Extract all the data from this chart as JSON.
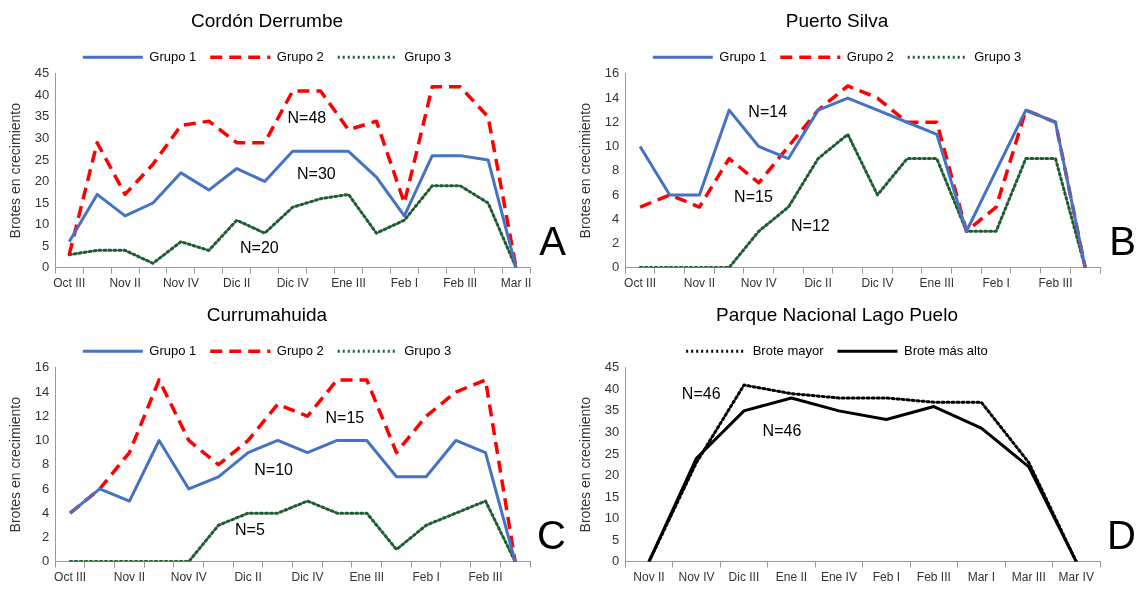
{
  "chart_data": [
    {
      "type": "line",
      "title": "Cordón Derrumbe",
      "ylabel": "Brotes en crecimiento",
      "legend": "top",
      "grid": false,
      "marker": "none",
      "categories": [
        "Oct III",
        null,
        "Nov II",
        null,
        "Nov IV",
        null,
        "Dic II",
        null,
        "Dic IV",
        null,
        "Ene III",
        null,
        "Feb I",
        null,
        "Feb III",
        null,
        "Mar II"
      ],
      "ylim": [
        0,
        45
      ],
      "yticks": [
        0,
        5,
        10,
        15,
        20,
        25,
        30,
        35,
        40,
        45
      ],
      "series": [
        {
          "name": "Grupo 1",
          "color": "#4472c4",
          "line_style": "solid",
          "values": [
            6,
            17,
            12,
            15,
            22,
            18,
            23,
            20,
            27,
            27,
            27,
            21,
            12,
            26,
            26,
            25,
            0
          ]
        },
        {
          "name": "Grupo 2",
          "color": "#ff0000",
          "line_style": "dashed",
          "values": [
            3,
            29,
            17,
            24,
            33,
            34,
            29,
            29,
            41,
            41,
            32,
            34,
            15,
            42,
            42,
            35,
            0
          ]
        },
        {
          "name": "Grupo 3",
          "color": "#1e5c32",
          "line_style": "dotted",
          "values": [
            3,
            4,
            4,
            1,
            6,
            4,
            11,
            8,
            14,
            16,
            17,
            8,
            11,
            19,
            19,
            15,
            0
          ]
        }
      ],
      "annotations": [
        "N=48",
        "N=30",
        "N=20",
        "A"
      ]
    },
    {
      "type": "line",
      "title": "Puerto Silva",
      "ylabel": "Brotes en crecimiento",
      "legend": "top",
      "grid": false,
      "marker": "none",
      "categories": [
        "Oct III",
        null,
        "Nov II",
        null,
        "Nov IV",
        null,
        "Dic II",
        null,
        "Dic IV",
        null,
        "Ene III",
        null,
        "Feb I",
        null,
        "Feb III",
        null
      ],
      "ylim": [
        0,
        16
      ],
      "yticks": [
        0,
        2,
        4,
        6,
        8,
        10,
        12,
        14,
        16
      ],
      "series": [
        {
          "name": "Grupo 1",
          "color": "#4472c4",
          "line_style": "solid",
          "values": [
            10,
            6,
            6,
            13,
            10,
            9,
            13,
            14,
            13,
            12,
            11,
            3,
            8,
            13,
            12,
            0
          ]
        },
        {
          "name": "Grupo 2",
          "color": "#ff0000",
          "line_style": "dashed",
          "values": [
            5,
            6,
            5,
            9,
            7,
            10,
            13,
            15,
            14,
            12,
            12,
            3,
            5,
            13,
            12,
            0
          ]
        },
        {
          "name": "Grupo 3",
          "color": "#1e5c32",
          "line_style": "dotted",
          "values": [
            0,
            0,
            0,
            0,
            3,
            5,
            9,
            11,
            6,
            9,
            9,
            3,
            3,
            9,
            9,
            0
          ]
        }
      ],
      "annotations": [
        "N=14",
        "N=15",
        "N=12",
        "B"
      ]
    },
    {
      "type": "line",
      "title": "Currumahuida",
      "ylabel": "Brotes en crecimiento",
      "legend": "top",
      "grid": false,
      "marker": "none",
      "categories": [
        "Oct III",
        null,
        "Nov II",
        null,
        "Nov IV",
        null,
        "Dic II",
        null,
        "Dic IV",
        null,
        "Ene III",
        null,
        "Feb I",
        null,
        "Feb III",
        null
      ],
      "ylim": [
        0,
        16
      ],
      "yticks": [
        0,
        2,
        4,
        6,
        8,
        10,
        12,
        14,
        16
      ],
      "series": [
        {
          "name": "Grupo 1",
          "color": "#4472c4",
          "line_style": "solid",
          "values": [
            4,
            6,
            5,
            10,
            6,
            7,
            9,
            10,
            9,
            10,
            10,
            7,
            7,
            10,
            9,
            0
          ]
        },
        {
          "name": "Grupo 2",
          "color": "#ff0000",
          "line_style": "dashed",
          "values": [
            4,
            6,
            9,
            15,
            10,
            8,
            10,
            13,
            12,
            15,
            15,
            9,
            12,
            14,
            15,
            0
          ]
        },
        {
          "name": "Grupo 3",
          "color": "#1e5c32",
          "line_style": "dotted",
          "values": [
            0,
            0,
            0,
            0,
            0,
            3,
            4,
            4,
            5,
            4,
            4,
            1,
            3,
            4,
            5,
            0
          ]
        }
      ],
      "annotations": [
        "N=15",
        "N=10",
        "N=5",
        "C"
      ]
    },
    {
      "type": "line",
      "title": "Parque Nacional Lago Puelo",
      "ylabel": "Brotes en crecimiento",
      "legend": "top",
      "grid": false,
      "marker": "none",
      "categories": [
        "Nov II",
        "Nov IV",
        "Dic III",
        "Ene II",
        "Ene IV",
        "Feb I",
        "Feb III",
        "Mar I",
        "Mar III",
        "Mar IV"
      ],
      "ylim": [
        0,
        45
      ],
      "yticks": [
        0,
        5,
        10,
        15,
        20,
        25,
        30,
        35,
        40,
        45
      ],
      "series": [
        {
          "name": "Brote mayor",
          "color": "#000000",
          "line_style": "dotted",
          "values": [
            0,
            23,
            41,
            39,
            38,
            38,
            37,
            37,
            23,
            0
          ]
        },
        {
          "name": "Brote más alto",
          "color": "#000000",
          "line_style": "solid",
          "values": [
            0,
            24,
            35,
            38,
            35,
            33,
            36,
            31,
            22,
            0
          ]
        }
      ],
      "annotations": [
        "N=46",
        "N=46",
        "D"
      ]
    }
  ]
}
